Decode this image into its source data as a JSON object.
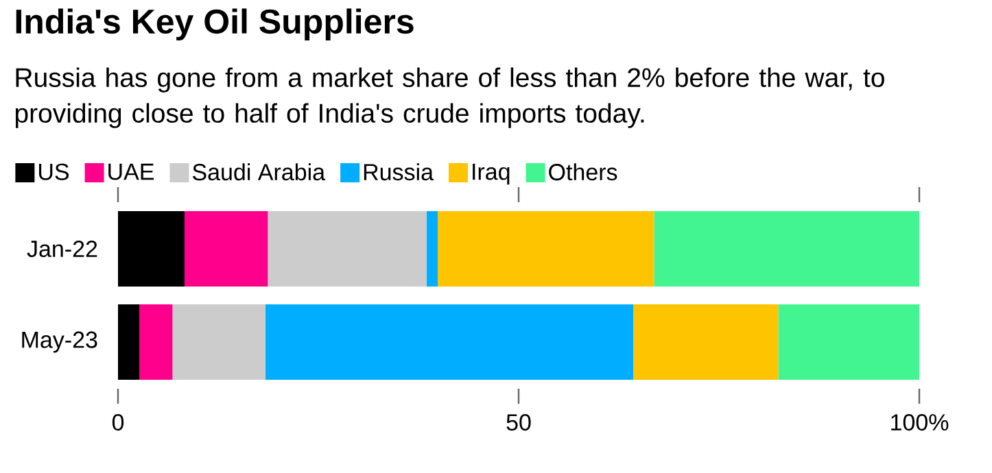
{
  "chart_data": {
    "type": "bar",
    "orientation": "horizontal",
    "stacked": true,
    "title": "India's Key Oil Suppliers",
    "subtitle": "Russia has gone from a market share of less than 2% before the war, to providing close to half of India's crude imports today.",
    "categories": [
      "Jan-22",
      "May-23"
    ],
    "series": [
      {
        "name": "US",
        "color": "#000000",
        "values": [
          8.3,
          2.7
        ]
      },
      {
        "name": "UAE",
        "color": "#ff008c",
        "values": [
          10.4,
          4.1
        ]
      },
      {
        "name": "Saudi Arabia",
        "color": "#cccccc",
        "values": [
          19.8,
          11.6
        ]
      },
      {
        "name": "Russia",
        "color": "#00adff",
        "values": [
          1.4,
          45.9
        ]
      },
      {
        "name": "Iraq",
        "color": "#ffc400",
        "values": [
          27.0,
          18.1
        ]
      },
      {
        "name": "Others",
        "color": "#42f590",
        "values": [
          33.1,
          17.6
        ]
      }
    ],
    "xlim": [
      0,
      100
    ],
    "xticks": [
      0,
      50,
      {
        "value": 100,
        "label": "100%"
      }
    ],
    "legend": "top left",
    "grid": false
  }
}
